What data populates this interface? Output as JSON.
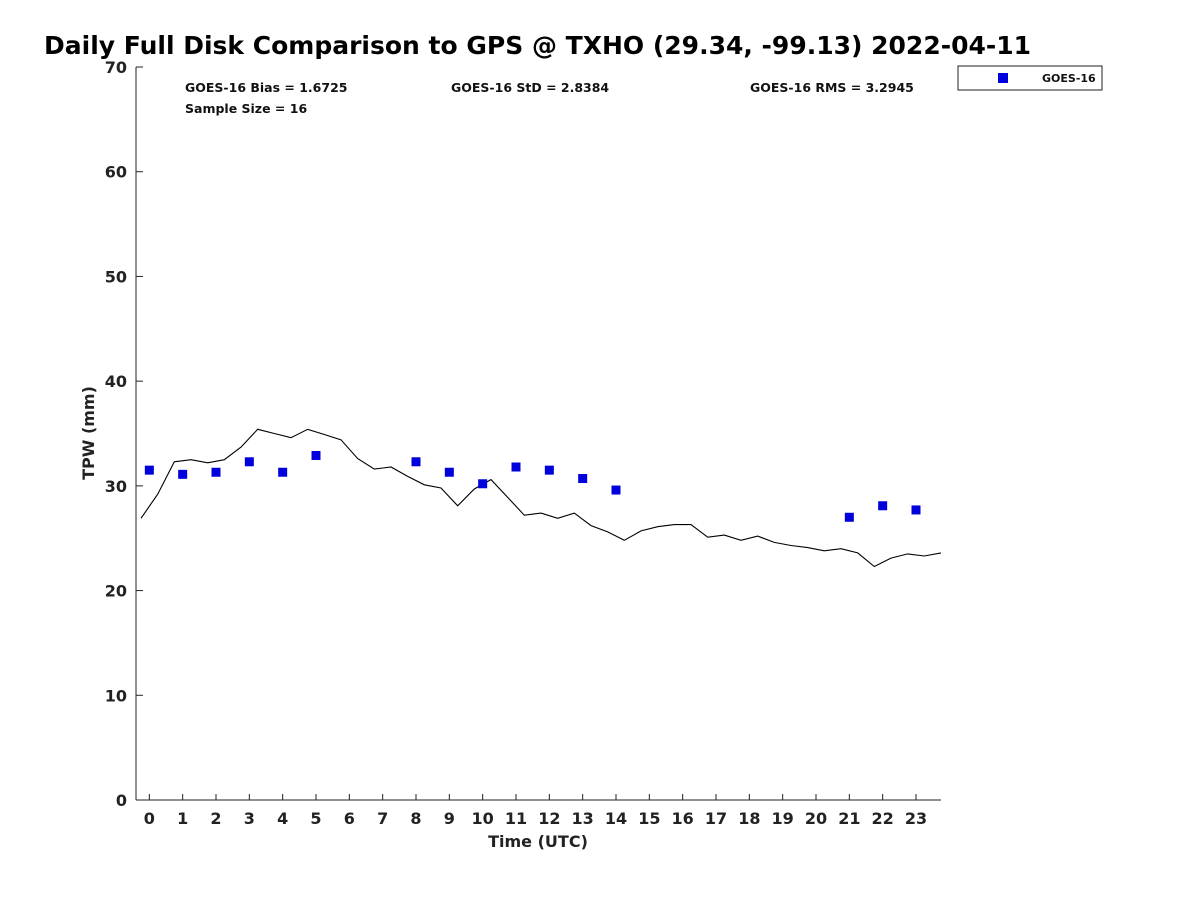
{
  "chart_data": {
    "type": "scatter",
    "title": "Daily Full Disk Comparison to GPS @ TXHO (29.34, -99.13) 2022-04-11",
    "xlabel": "Time (UTC)",
    "ylabel": "TPW (mm)",
    "xlim": [
      -0.4,
      23.75
    ],
    "ylim": [
      0,
      70
    ],
    "x_ticks": [
      0,
      1,
      2,
      3,
      4,
      5,
      6,
      7,
      8,
      9,
      10,
      11,
      12,
      13,
      14,
      15,
      16,
      17,
      18,
      19,
      20,
      21,
      22,
      23
    ],
    "y_ticks": [
      0,
      10,
      20,
      30,
      40,
      50,
      60,
      70
    ],
    "grid": false,
    "legend_position": "top-right",
    "stats": {
      "bias": "GOES-16 Bias = 1.6725",
      "std": "GOES-16 StD = 2.8384",
      "rms": "GOES-16 RMS = 3.2945",
      "sample_size": "Sample Size = 16"
    },
    "series": [
      {
        "name": "GOES-16",
        "kind": "scatter",
        "color": "#0000dd",
        "x": [
          0,
          1,
          2,
          3,
          4,
          5,
          8,
          9,
          10,
          11,
          12,
          13,
          14,
          21,
          22,
          23
        ],
        "y": [
          31.5,
          31.1,
          31.3,
          32.3,
          31.3,
          32.9,
          32.3,
          31.3,
          30.2,
          31.8,
          31.5,
          30.7,
          29.6,
          27.0,
          28.1,
          27.7
        ]
      },
      {
        "kind": "line",
        "color": "#000000",
        "x": [
          -0.25,
          0.25,
          0.75,
          1.25,
          1.75,
          2.25,
          2.75,
          3.25,
          3.75,
          4.25,
          4.75,
          5.25,
          5.75,
          6.25,
          6.75,
          7.25,
          7.75,
          8.25,
          8.75,
          9.25,
          9.75,
          10.25,
          10.75,
          11.25,
          11.75,
          12.25,
          12.75,
          13.25,
          13.75,
          14.25,
          14.75,
          15.25,
          15.75,
          16.25,
          16.75,
          17.25,
          17.75,
          18.25,
          18.75,
          19.25,
          19.75,
          20.25,
          20.75,
          21.25,
          21.75,
          22.25,
          22.75,
          23.25,
          23.75
        ],
        "y": [
          26.9,
          29.2,
          32.3,
          32.5,
          32.2,
          32.5,
          33.7,
          35.4,
          35.0,
          34.6,
          35.4,
          34.9,
          34.4,
          32.6,
          31.6,
          31.8,
          30.9,
          30.1,
          29.8,
          28.1,
          29.7,
          30.6,
          28.9,
          27.2,
          27.4,
          26.9,
          27.4,
          26.2,
          25.6,
          24.8,
          25.7,
          26.1,
          26.3,
          26.3,
          25.1,
          25.3,
          24.8,
          25.2,
          24.6,
          24.3,
          24.1,
          23.8,
          24.0,
          23.6,
          22.3,
          23.1,
          23.5,
          23.3,
          23.6
        ]
      }
    ]
  }
}
